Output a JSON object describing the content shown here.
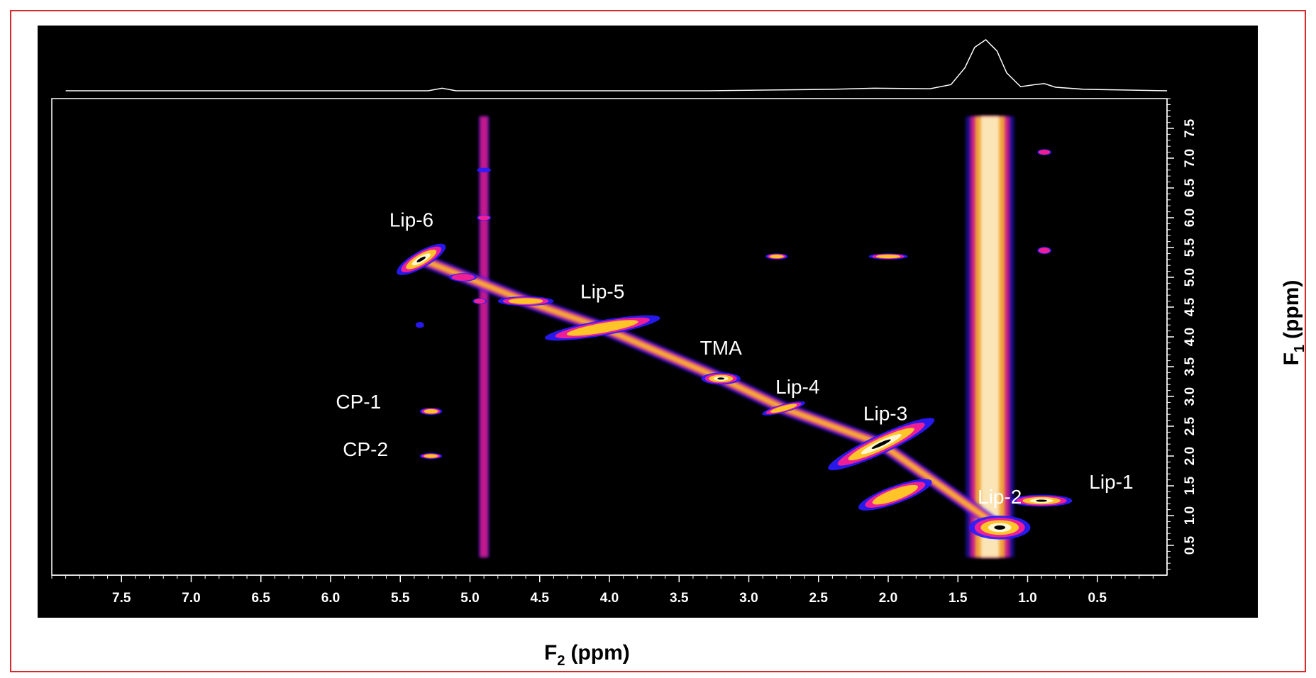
{
  "colors": {
    "frame_border": "#d62a2a",
    "plot_background": "#000000",
    "axis_line": "#ffffff",
    "contour_outer": "#2a1aff",
    "contour_mid": "#ff1f8e",
    "contour_hot": "#ffd21e",
    "contour_peak": "#fffbe0"
  },
  "chart_data": {
    "type": "heatmap",
    "subtype": "2D NMR contour plot with 1D projection",
    "xlabel_main": "F",
    "xlabel_sub": "2",
    "xlabel_unit": "(ppm)",
    "ylabel_main": "F",
    "ylabel_sub": "1",
    "ylabel_unit": "(ppm)",
    "x_axis": "reversed",
    "y_axis": "reversed",
    "xlim": [
      8.0,
      0.0
    ],
    "ylim": [
      8.0,
      0.0
    ],
    "x_ticks": [
      "7.5",
      "7.0",
      "6.5",
      "6.0",
      "5.5",
      "5.0",
      "4.5",
      "4.0",
      "3.5",
      "3.0",
      "2.5",
      "2.0",
      "1.5",
      "1.0",
      "0.5"
    ],
    "y_ticks": [
      "0.5",
      "1.0",
      "1.5",
      "2.0",
      "2.5",
      "3.0",
      "3.5",
      "4.0",
      "4.5",
      "5.0",
      "5.5",
      "6.0",
      "6.5",
      "7.0",
      "7.5"
    ],
    "grid": false,
    "projection_f2": [
      [
        7.9,
        0.0
      ],
      [
        5.3,
        0.0
      ],
      [
        5.2,
        0.05
      ],
      [
        5.1,
        0.0
      ],
      [
        3.3,
        0.0
      ],
      [
        2.4,
        0.03
      ],
      [
        2.1,
        0.05
      ],
      [
        1.7,
        0.04
      ],
      [
        1.55,
        0.12
      ],
      [
        1.45,
        0.45
      ],
      [
        1.38,
        0.85
      ],
      [
        1.3,
        1.0
      ],
      [
        1.22,
        0.78
      ],
      [
        1.15,
        0.35
      ],
      [
        1.05,
        0.08
      ],
      [
        0.95,
        0.12
      ],
      [
        0.88,
        0.14
      ],
      [
        0.8,
        0.07
      ],
      [
        0.6,
        0.03
      ],
      [
        0.0,
        0.0
      ]
    ],
    "annotations": [
      {
        "text": "Lip-6",
        "x": 5.42,
        "y": 5.85
      },
      {
        "text": "Lip-5",
        "x": 4.05,
        "y": 4.65
      },
      {
        "text": "TMA",
        "x": 3.2,
        "y": 3.7
      },
      {
        "text": "Lip-4",
        "x": 2.65,
        "y": 3.05
      },
      {
        "text": "Lip-3",
        "x": 2.02,
        "y": 2.6
      },
      {
        "text": "CP-1",
        "x": 5.8,
        "y": 2.8
      },
      {
        "text": "CP-2",
        "x": 5.75,
        "y": 2.0
      },
      {
        "text": "Lip-2",
        "x": 1.2,
        "y": 1.2
      },
      {
        "text": "Lip-1",
        "x": 0.4,
        "y": 1.45
      }
    ],
    "peaks": [
      {
        "x": 5.35,
        "y": 5.3,
        "rx": 0.2,
        "ry": 0.14,
        "rot": 30,
        "level": 4
      },
      {
        "x": 5.05,
        "y": 5.0,
        "rx": 0.1,
        "ry": 0.07,
        "level": 2
      },
      {
        "x": 4.6,
        "y": 4.6,
        "rx": 0.2,
        "ry": 0.08,
        "level": 3
      },
      {
        "x": 4.05,
        "y": 4.15,
        "rx": 0.42,
        "ry": 0.13,
        "rot": 10,
        "level": 3
      },
      {
        "x": 3.2,
        "y": 3.3,
        "rx": 0.14,
        "ry": 0.1,
        "level": 4
      },
      {
        "x": 2.75,
        "y": 2.8,
        "rx": 0.16,
        "ry": 0.07,
        "rot": 15,
        "level": 3
      },
      {
        "x": 2.05,
        "y": 2.2,
        "rx": 0.42,
        "ry": 0.16,
        "rot": 25,
        "level": 4
      },
      {
        "x": 1.95,
        "y": 1.35,
        "rx": 0.28,
        "ry": 0.15,
        "rot": 20,
        "level": 3
      },
      {
        "x": 1.2,
        "y": 0.8,
        "rx": 0.22,
        "ry": 0.2,
        "level": 4
      },
      {
        "x": 0.9,
        "y": 1.25,
        "rx": 0.22,
        "ry": 0.1,
        "level": 4
      },
      {
        "x": 2.8,
        "y": 5.35,
        "rx": 0.08,
        "ry": 0.05,
        "level": 3
      },
      {
        "x": 2.0,
        "y": 5.35,
        "rx": 0.14,
        "ry": 0.05,
        "level": 3
      },
      {
        "x": 5.28,
        "y": 2.75,
        "rx": 0.08,
        "ry": 0.06,
        "level": 3
      },
      {
        "x": 5.28,
        "y": 2.0,
        "rx": 0.08,
        "ry": 0.05,
        "level": 3
      },
      {
        "x": 4.93,
        "y": 4.6,
        "rx": 0.05,
        "ry": 0.05,
        "level": 2
      },
      {
        "x": 5.36,
        "y": 4.2,
        "rx": 0.03,
        "ry": 0.05,
        "level": 1
      },
      {
        "x": 4.9,
        "y": 6.8,
        "rx": 0.05,
        "ry": 0.04,
        "level": 1
      },
      {
        "x": 4.9,
        "y": 6.0,
        "rx": 0.05,
        "ry": 0.05,
        "level": 2
      },
      {
        "x": 0.88,
        "y": 5.45,
        "rx": 0.05,
        "ry": 0.06,
        "level": 2
      },
      {
        "x": 0.88,
        "y": 7.1,
        "rx": 0.05,
        "ry": 0.05,
        "level": 2
      }
    ],
    "ridges": [
      {
        "x": 1.27,
        "y_from": 0.3,
        "y_to": 7.7,
        "level": 3
      },
      {
        "x": 4.9,
        "y_from": 0.3,
        "y_to": 7.7,
        "level": 1
      },
      {
        "x": 5.4,
        "y_from": 5.3,
        "y_to": 0.5,
        "level": 1
      }
    ]
  }
}
